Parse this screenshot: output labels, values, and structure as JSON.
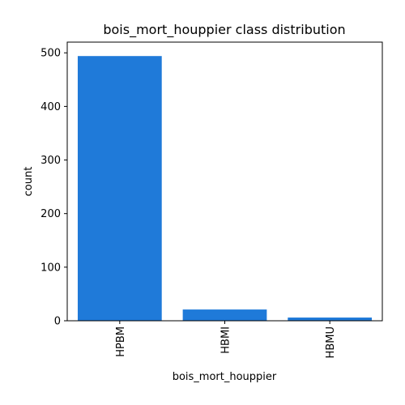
{
  "chart_data": {
    "type": "bar",
    "title": "bois_mort_houppier class distribution",
    "xlabel": "bois_mort_houppier",
    "ylabel": "count",
    "categories": [
      "HPBM",
      "HBMI",
      "HBMU"
    ],
    "values": [
      494,
      21,
      6
    ],
    "ylim": [
      0,
      520
    ],
    "yticks": [
      0,
      100,
      200,
      300,
      400,
      500
    ],
    "bar_color": "#1f7ad9",
    "grid": false,
    "legend": "none"
  }
}
